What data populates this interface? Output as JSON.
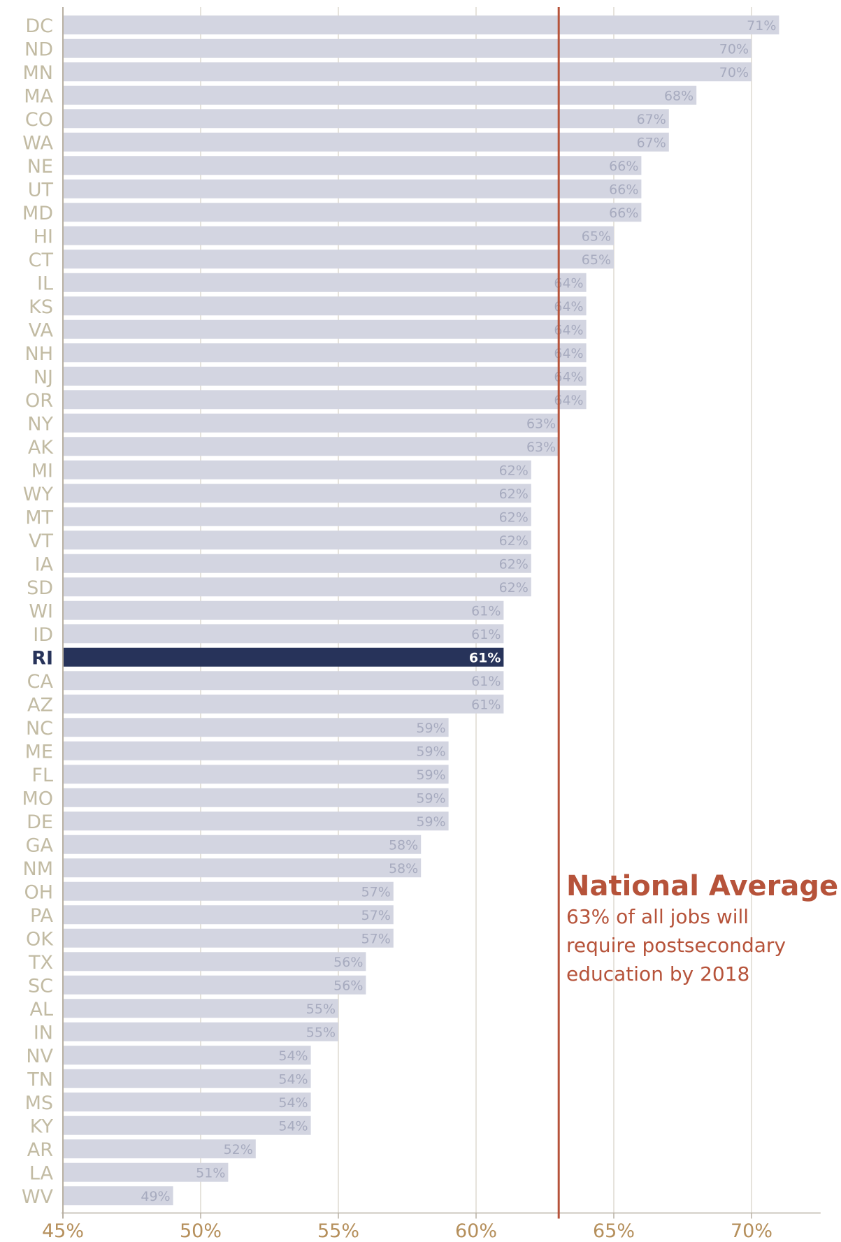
{
  "chart_data": {
    "type": "bar",
    "orientation": "horizontal",
    "categories": [
      "DC",
      "ND",
      "MN",
      "MA",
      "CO",
      "WA",
      "NE",
      "UT",
      "MD",
      "HI",
      "CT",
      "IL",
      "KS",
      "VA",
      "NH",
      "NJ",
      "OR",
      "NY",
      "AK",
      "MI",
      "WY",
      "MT",
      "VT",
      "IA",
      "SD",
      "WI",
      "ID",
      "RI",
      "CA",
      "AZ",
      "NC",
      "ME",
      "FL",
      "MO",
      "DE",
      "GA",
      "NM",
      "OH",
      "PA",
      "OK",
      "TX",
      "SC",
      "AL",
      "IN",
      "NV",
      "TN",
      "MS",
      "KY",
      "AR",
      "LA",
      "WV"
    ],
    "values": [
      71,
      70,
      70,
      68,
      67,
      67,
      66,
      66,
      66,
      65,
      65,
      64,
      64,
      64,
      64,
      64,
      64,
      63,
      63,
      62,
      62,
      62,
      62,
      62,
      62,
      61,
      61,
      61,
      61,
      61,
      59,
      59,
      59,
      59,
      59,
      58,
      58,
      57,
      57,
      57,
      56,
      56,
      55,
      55,
      54,
      54,
      54,
      54,
      52,
      51,
      49
    ],
    "value_labels": [
      "71%",
      "70%",
      "70%",
      "68%",
      "67%",
      "67%",
      "66%",
      "66%",
      "66%",
      "65%",
      "65%",
      "64%",
      "64%",
      "64%",
      "64%",
      "64%",
      "64%",
      "63%",
      "63%",
      "62%",
      "62%",
      "62%",
      "62%",
      "62%",
      "62%",
      "61%",
      "61%",
      "61%",
      "61%",
      "61%",
      "59%",
      "59%",
      "59%",
      "59%",
      "59%",
      "58%",
      "58%",
      "57%",
      "57%",
      "57%",
      "56%",
      "56%",
      "55%",
      "55%",
      "54%",
      "54%",
      "54%",
      "54%",
      "52%",
      "51%",
      "49%"
    ],
    "highlighted_category": "RI",
    "xlim": [
      45,
      72
    ],
    "x_ticks": [
      45,
      50,
      55,
      60,
      65,
      70
    ],
    "x_tick_labels": [
      "45%",
      "50%",
      "55%",
      "60%",
      "65%",
      "70%"
    ],
    "reference_line": {
      "value": 63
    },
    "annotation": {
      "title": "National Average",
      "lines": [
        "63% of all jobs will",
        "require postsecondary",
        "education by 2018"
      ]
    },
    "grid": true,
    "colors": {
      "bar": "#d3d5e1",
      "highlight_bar": "#27335a",
      "reference": "#b6533a",
      "label": "#c2bba3",
      "highlight_label": "#27335a",
      "value_label": "#a7abbf",
      "highlight_value_label": "#ffffff",
      "grid": "#e6e3dc",
      "axis": "#b8b0a2",
      "tick_label": "#b58f5b"
    }
  }
}
